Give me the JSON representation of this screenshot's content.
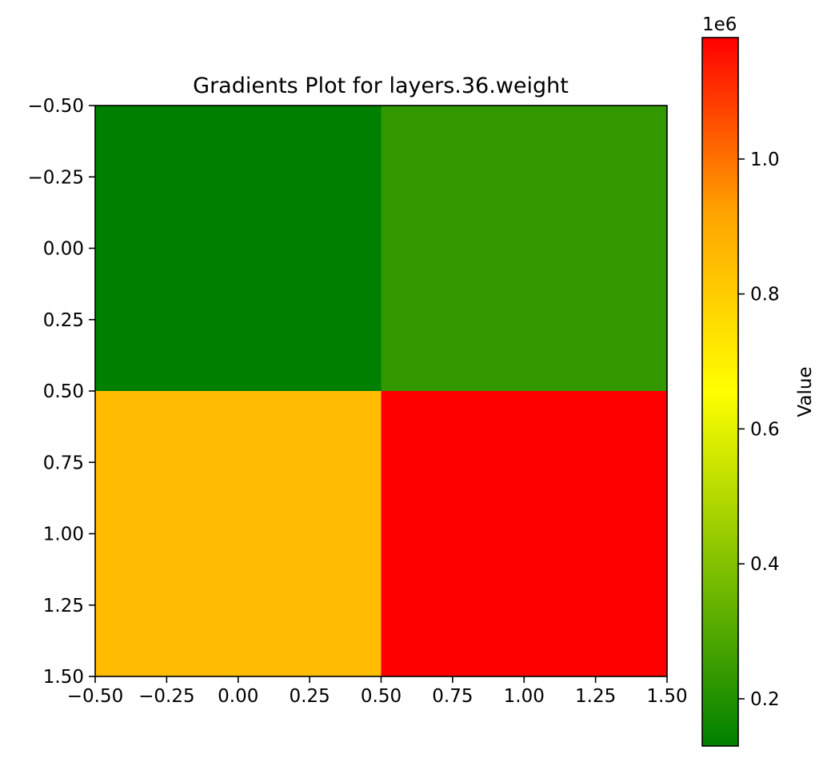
{
  "chart_data": {
    "type": "heatmap",
    "title": "Gradients Plot for layers.36.weight",
    "xlabel": "",
    "ylabel": "",
    "xlim": [
      -0.5,
      1.5
    ],
    "ylim": [
      1.5,
      -0.5
    ],
    "x_ticks": [
      "−0.50",
      "−0.25",
      "0.00",
      "0.25",
      "0.50",
      "0.75",
      "1.00",
      "1.25",
      "1.50"
    ],
    "y_ticks": [
      "−0.50",
      "−0.25",
      "0.00",
      "0.25",
      "0.50",
      "0.75",
      "1.00",
      "1.25",
      "1.50"
    ],
    "rows": 2,
    "cols": 2,
    "values": [
      [
        130000,
        230000
      ],
      [
        850000,
        1180000
      ]
    ],
    "colormap": {
      "stops": [
        {
          "pos": 0.0,
          "color": "#008000"
        },
        {
          "pos": 0.5,
          "color": "#ffff00"
        },
        {
          "pos": 0.75,
          "color": "#ffa500"
        },
        {
          "pos": 1.0,
          "color": "#ff0000"
        }
      ]
    },
    "colorbar": {
      "label": "Value",
      "offset_text": "1e6",
      "vmin": 130000,
      "vmax": 1180000,
      "ticks": [
        0.2,
        0.4,
        0.6,
        0.8,
        1.0
      ],
      "tick_labels": [
        "0.2",
        "0.4",
        "0.6",
        "0.8",
        "1.0"
      ]
    },
    "grid": false
  }
}
